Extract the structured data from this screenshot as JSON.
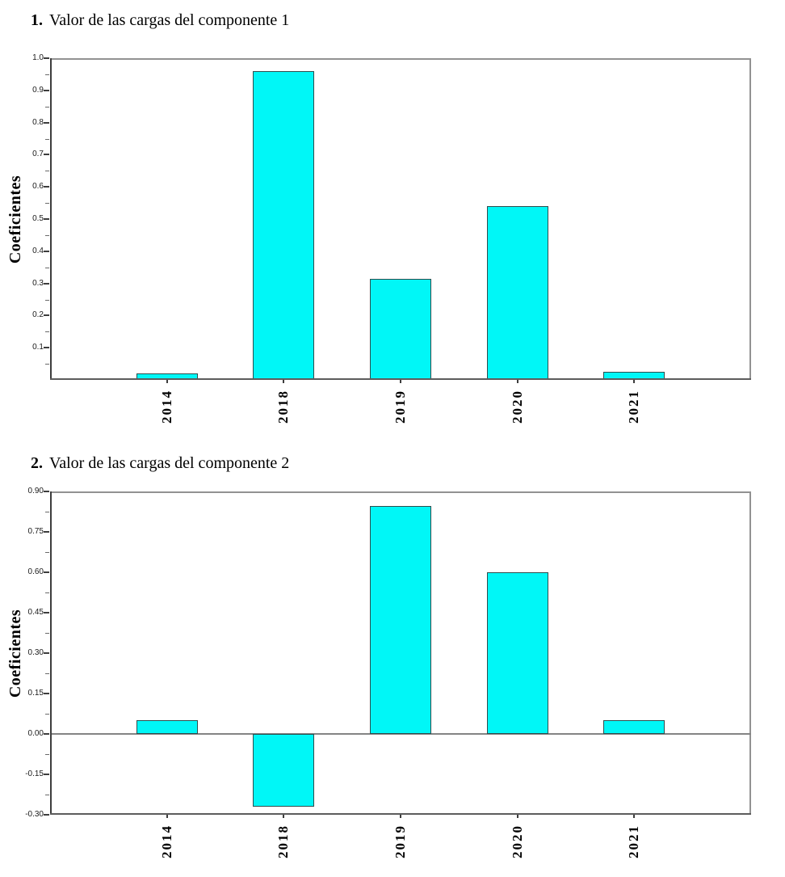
{
  "colors": {
    "bar_fill": "#00f7f7",
    "bar_border": "#2e4d4d",
    "plot_frame": "#929292",
    "axis_dark": "#3d3d3d",
    "axis_bottom": "#5c5c5c",
    "zero_line": "#848484",
    "text": "#000000",
    "tick_text": "#1a1a1a",
    "background": "#ffffff"
  },
  "chart_data": [
    {
      "type": "bar",
      "number": "1.",
      "title": "Valor de las cargas del componente 1",
      "ylabel": "Coeficientes",
      "xlabel": "",
      "categories": [
        "2014",
        "2018",
        "2019",
        "2020",
        "2021"
      ],
      "values": [
        0.02,
        0.96,
        0.315,
        0.54,
        0.025
      ],
      "ylim": [
        0.0,
        1.0
      ],
      "ytick_values": [
        1.0,
        0.9,
        0.8,
        0.7,
        0.6,
        0.5,
        0.4,
        0.3,
        0.2,
        0.1
      ],
      "ytick_labels": [
        "1.0",
        "0.9",
        "0.8",
        "0.7",
        "0.6",
        "0.5",
        "0.4",
        "0.3",
        "0.2",
        "0.1"
      ],
      "grid": false,
      "legend": "none",
      "zero_line": false
    },
    {
      "type": "bar",
      "number": "2.",
      "title": "Valor de las cargas del componente 2",
      "ylabel": "Coeficientes",
      "xlabel": "",
      "categories": [
        "2014",
        "2018",
        "2019",
        "2020",
        "2021"
      ],
      "values": [
        0.05,
        -0.27,
        0.845,
        0.6,
        0.05
      ],
      "ylim": [
        -0.3,
        0.9
      ],
      "ytick_values": [
        0.9,
        0.75,
        0.6,
        0.45,
        0.3,
        0.15,
        0.0,
        -0.15,
        -0.3
      ],
      "ytick_labels": [
        "0.90",
        "0.75",
        "0.60",
        "0.45",
        "0.30",
        "0.15",
        "0.00",
        "-0.15",
        "-0.30"
      ],
      "grid": false,
      "legend": "none",
      "zero_line": true
    }
  ]
}
